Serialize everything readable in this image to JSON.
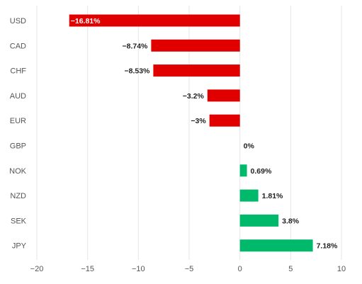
{
  "chart_data": {
    "type": "bar",
    "orientation": "horizontal",
    "categories": [
      "USD",
      "CAD",
      "CHF",
      "AUD",
      "EUR",
      "GBP",
      "NOK",
      "NZD",
      "SEK",
      "JPY"
    ],
    "values": [
      -16.81,
      -8.74,
      -8.53,
      -3.2,
      -3,
      0,
      0.69,
      1.81,
      3.8,
      7.18
    ],
    "value_labels": [
      "−16.81%",
      "−8.74%",
      "−8.53%",
      "−3.2%",
      "−3%",
      "0%",
      "0.69%",
      "1.81%",
      "3.8%",
      "7.18%"
    ],
    "xlim": [
      -20,
      10
    ],
    "x_ticks": [
      -20,
      -15,
      -10,
      -5,
      0,
      5,
      10
    ],
    "x_tick_labels": [
      "−20",
      "−15",
      "−10",
      "−5",
      "0",
      "5",
      "10"
    ],
    "grid": "vertical",
    "colors": {
      "negative": "#e00000",
      "positive": "#00b96b"
    },
    "title": "",
    "xlabel": "",
    "ylabel": ""
  }
}
